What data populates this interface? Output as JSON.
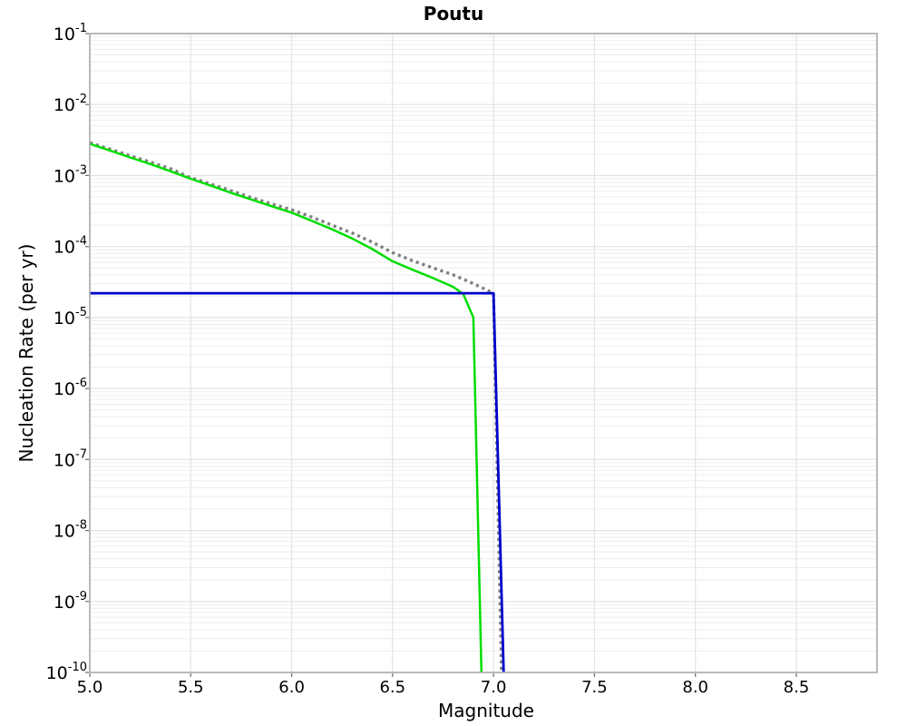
{
  "chart_data": {
    "type": "line",
    "title": "Poutu",
    "xlabel": "Magnitude",
    "ylabel": "Nucleation Rate (per yr)",
    "xlim": [
      5.0,
      8.9
    ],
    "ylim": [
      1e-10,
      0.1
    ],
    "x_scale": "linear",
    "y_scale": "log",
    "grid": true,
    "legend": false,
    "x_tick_values": [
      5.0,
      5.5,
      6.0,
      6.5,
      7.0,
      7.5,
      8.0,
      8.5
    ],
    "x_tick_labels": [
      "5.0",
      "5.5",
      "6.0",
      "6.5",
      "7.0",
      "7.5",
      "8.0",
      "8.5"
    ],
    "y_tick_exponents": [
      -1,
      -2,
      -3,
      -4,
      -5,
      -6,
      -7,
      -8,
      -9,
      -10
    ],
    "series": [
      {
        "name": "gray-dotted-curve",
        "color": "#7f7f7f",
        "style": "dotted",
        "width": 3.4,
        "points": [
          [
            5.0,
            0.0029
          ],
          [
            5.1,
            0.00235
          ],
          [
            5.2,
            0.0019
          ],
          [
            5.3,
            0.00155
          ],
          [
            5.4,
            0.00125
          ],
          [
            5.5,
            0.00093
          ],
          [
            5.6,
            0.00076
          ],
          [
            5.7,
            0.00061
          ],
          [
            5.8,
            0.00049
          ],
          [
            5.9,
            0.0004
          ],
          [
            6.0,
            0.00033
          ],
          [
            6.1,
            0.00026
          ],
          [
            6.2,
            0.0002
          ],
          [
            6.3,
            0.000155
          ],
          [
            6.4,
            0.000115
          ],
          [
            6.5,
            8.2e-05
          ],
          [
            6.6,
            6.3e-05
          ],
          [
            6.7,
            5e-05
          ],
          [
            6.8,
            4e-05
          ],
          [
            6.9,
            3e-05
          ],
          [
            7.0,
            2.2e-05
          ],
          [
            7.04,
            1e-10
          ]
        ]
      },
      {
        "name": "green-solid-curve",
        "color": "#00dd00",
        "style": "solid",
        "width": 2.5,
        "points": [
          [
            5.0,
            0.0028
          ],
          [
            5.1,
            0.00225
          ],
          [
            5.2,
            0.0018
          ],
          [
            5.3,
            0.00145
          ],
          [
            5.4,
            0.00115
          ],
          [
            5.5,
            0.0009
          ],
          [
            5.6,
            0.00072
          ],
          [
            5.7,
            0.00057
          ],
          [
            5.8,
            0.00046
          ],
          [
            5.9,
            0.00037
          ],
          [
            6.0,
            0.0003
          ],
          [
            6.1,
            0.00023
          ],
          [
            6.2,
            0.000175
          ],
          [
            6.3,
            0.00013
          ],
          [
            6.4,
            9.2e-05
          ],
          [
            6.5,
            6.2e-05
          ],
          [
            6.6,
            4.7e-05
          ],
          [
            6.7,
            3.6e-05
          ],
          [
            6.8,
            2.7e-05
          ],
          [
            6.85,
            2.15e-05
          ],
          [
            6.9,
            1e-05
          ],
          [
            6.94,
            1e-10
          ]
        ]
      },
      {
        "name": "blue-solid-line",
        "color": "#0000cc",
        "style": "solid",
        "width": 2.8,
        "points": [
          [
            5.0,
            2.2e-05
          ],
          [
            7.0,
            2.2e-05
          ],
          [
            7.05,
            1e-10
          ]
        ]
      }
    ]
  }
}
